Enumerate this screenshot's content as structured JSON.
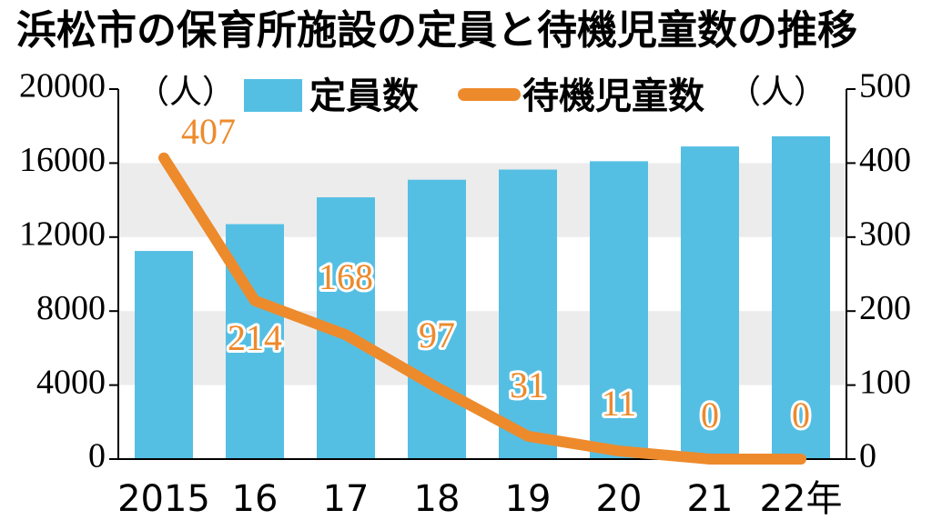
{
  "title": "浜松市の保育所施設の定員と待機児童数の推移",
  "colors": {
    "bar": "#55bfe3",
    "line": "#ed8a2c",
    "band": "#ececec",
    "text": "#000000"
  },
  "chart_data": {
    "type": "bar+line",
    "categories": [
      "2015",
      "16",
      "17",
      "18",
      "19",
      "20",
      "21",
      "22年"
    ],
    "series": [
      {
        "name": "定員数",
        "type": "bar",
        "axis": "left",
        "values": [
          11250,
          12700,
          14150,
          15100,
          15650,
          16100,
          16900,
          17450
        ]
      },
      {
        "name": "待機児童数",
        "type": "line",
        "axis": "right",
        "values": [
          407,
          214,
          168,
          97,
          31,
          11,
          0,
          0
        ]
      }
    ],
    "y_left": {
      "unit": "（人）",
      "ylim": [
        0,
        20000
      ],
      "ticks": [
        "0",
        "4000",
        "8000",
        "12000",
        "16000",
        "20000"
      ]
    },
    "y_right": {
      "unit": "（人）",
      "ylim": [
        0,
        500
      ],
      "ticks": [
        "0",
        "100",
        "200",
        "300",
        "400",
        "500"
      ]
    },
    "legend_position": "top",
    "bands": true
  }
}
